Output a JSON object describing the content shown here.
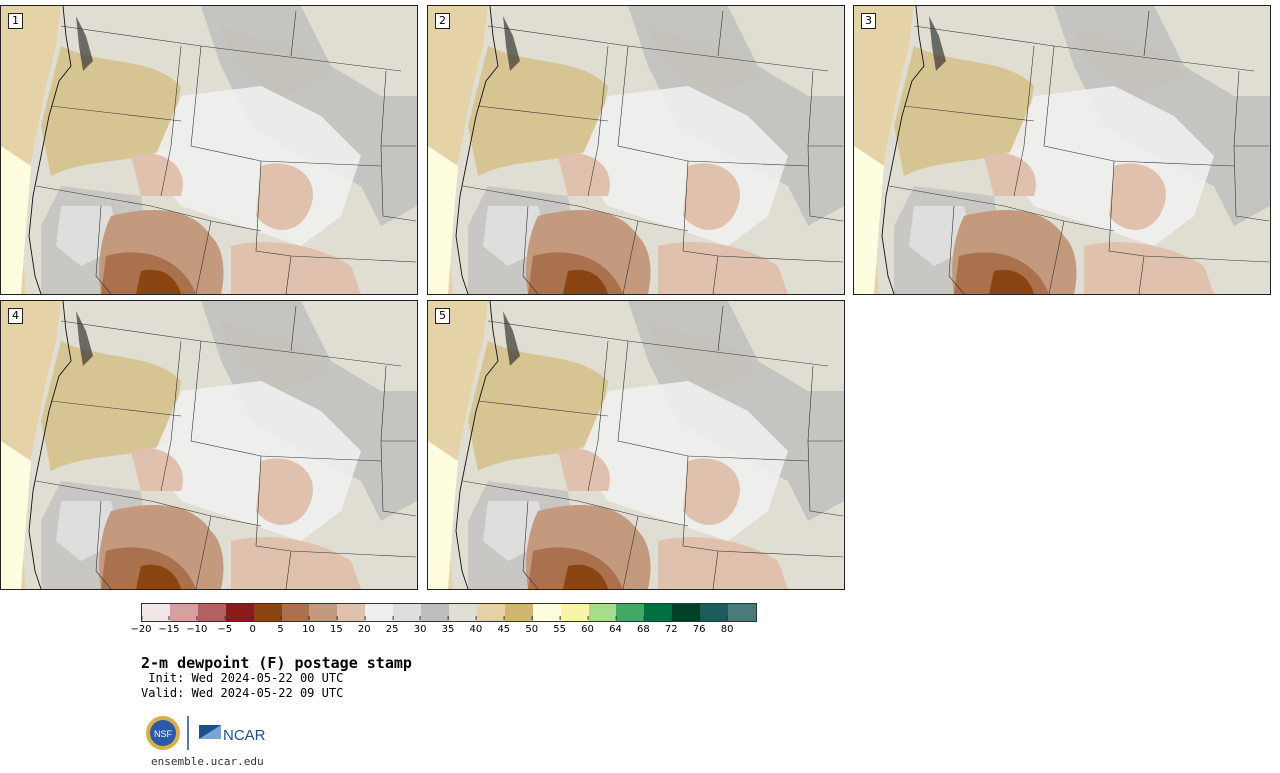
{
  "panels": [
    {
      "label": "1"
    },
    {
      "label": "2"
    },
    {
      "label": "3"
    },
    {
      "label": "4"
    },
    {
      "label": "5"
    }
  ],
  "colorbar": {
    "colors": [
      "#f2e6e6",
      "#d4a0a0",
      "#b36060",
      "#8b1a1a",
      "#8b4513",
      "#a9714d",
      "#c49a7f",
      "#dfc1ad",
      "#efefef",
      "#dedede",
      "#bdbdbd",
      "#e0ded2",
      "#e5d2a6",
      "#d1b570",
      "#fffde0",
      "#f7f5a8",
      "#a6dc8c",
      "#44a864",
      "#007040",
      "#004026",
      "#1d5c5c",
      "#4a7a7a"
    ],
    "ticks": [
      "−20",
      "−15",
      "−10",
      "−5",
      "0",
      "5",
      "10",
      "15",
      "20",
      "25",
      "30",
      "35",
      "40",
      "45",
      "50",
      "55",
      "60",
      "64",
      "68",
      "72",
      "76",
      "80"
    ]
  },
  "title": "2-m dewpoint (F) postage stamp",
  "init": " Init: Wed 2024-05-22 00 UTC",
  "valid": "Valid: Wed 2024-05-22 09 UTC",
  "logos": {
    "nsf": "NSF",
    "ncar": "NCAR"
  },
  "website": "ensemble.ucar.edu"
}
